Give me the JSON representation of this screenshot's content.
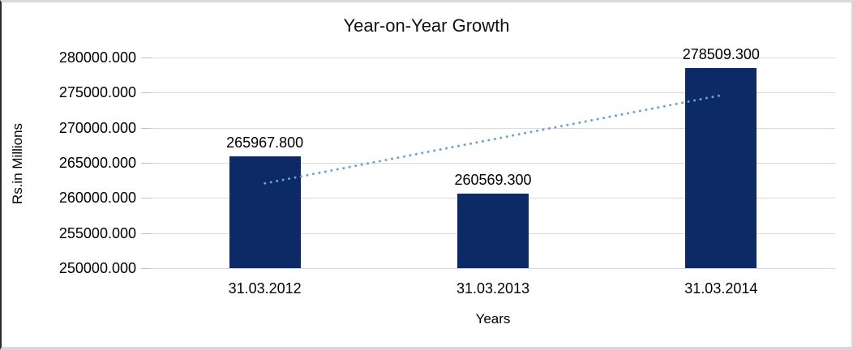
{
  "chart_data": {
    "type": "bar",
    "title": "Year-on-Year Growth",
    "xlabel": "Years",
    "ylabel": "Rs.in Millions",
    "categories": [
      "31.03.2012",
      "31.03.2013",
      "31.03.2014"
    ],
    "values": [
      265967.8,
      260569.3,
      278509.3
    ],
    "data_labels": [
      "265967.800",
      "260569.300",
      "278509.300"
    ],
    "ylim": [
      250000,
      280000
    ],
    "ytick_step": 5000,
    "ytick_labels": [
      "280000.000",
      "275000.000",
      "270000.000",
      "265000.000",
      "260000.000",
      "255000.000",
      "250000.000"
    ],
    "grid": true,
    "legend_position": "none",
    "colors": {
      "bar": "#0b2a66",
      "gridline": "#d9d9d9",
      "tickmark": "#bfbfbf",
      "trendline": "#6f9fd8",
      "text": "#000000",
      "frame_border": "#d9d9d9"
    },
    "trendline": {
      "type": "linear",
      "style": "dotted",
      "start_value": 262078.05,
      "end_value": 274619.55
    }
  }
}
